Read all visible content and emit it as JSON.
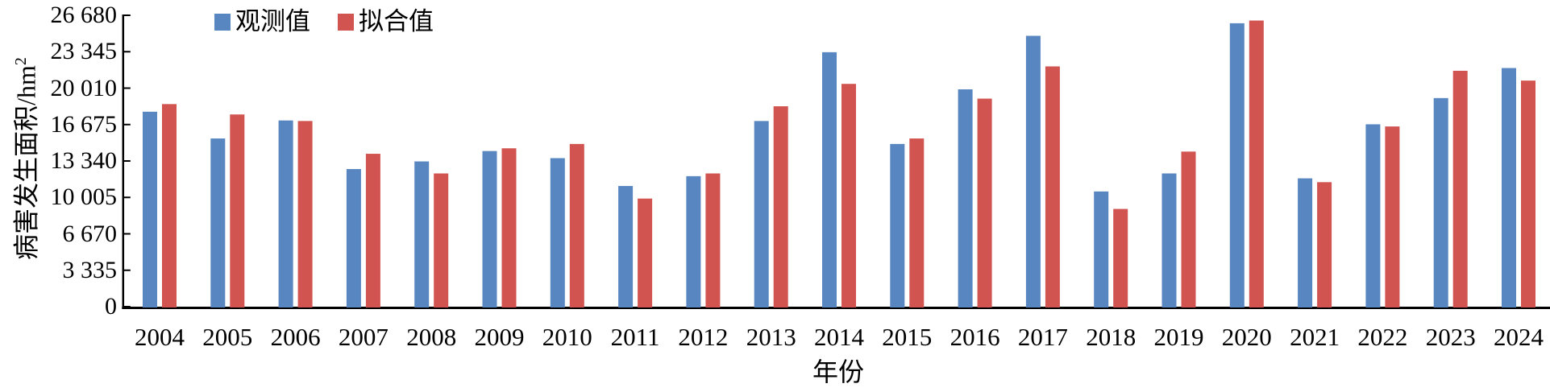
{
  "chart_data": {
    "type": "bar",
    "title": "",
    "xlabel": "年份",
    "ylabel": "病害发生面积/hm²",
    "ylabel_base": "病害发生面积/hm",
    "ylabel_superscript": "2",
    "categories": [
      "2004",
      "2005",
      "2006",
      "2007",
      "2008",
      "2009",
      "2010",
      "2011",
      "2012",
      "2013",
      "2014",
      "2015",
      "2016",
      "2017",
      "2018",
      "2019",
      "2020",
      "2021",
      "2022",
      "2023",
      "2024"
    ],
    "series": [
      {
        "name": "观测值",
        "color": "#5786c1",
        "values": [
          17850,
          15400,
          17050,
          12600,
          13300,
          14250,
          13600,
          11050,
          11950,
          17000,
          23300,
          14900,
          19900,
          24800,
          10550,
          12200,
          25950,
          11750,
          16700,
          19100,
          21850
        ]
      },
      {
        "name": "拟合值",
        "color": "#d15450",
        "values": [
          18550,
          17600,
          17000,
          14000,
          12200,
          14500,
          14900,
          9900,
          12200,
          18350,
          20400,
          15400,
          19050,
          22000,
          8950,
          14200,
          26200,
          11400,
          16500,
          21600,
          20700
        ]
      }
    ],
    "ylim": [
      0,
      26680
    ],
    "yticks": [
      0,
      3335,
      6670,
      10005,
      13340,
      16675,
      20010,
      23345,
      26680
    ],
    "ytick_labels": [
      "0",
      "3 335",
      "6 670",
      "10 005",
      "13 340",
      "16 675",
      "20 010",
      "23 345",
      "26 680"
    ],
    "legend_position": "top-left-inside",
    "grid": false,
    "axis_color": "#000000"
  }
}
